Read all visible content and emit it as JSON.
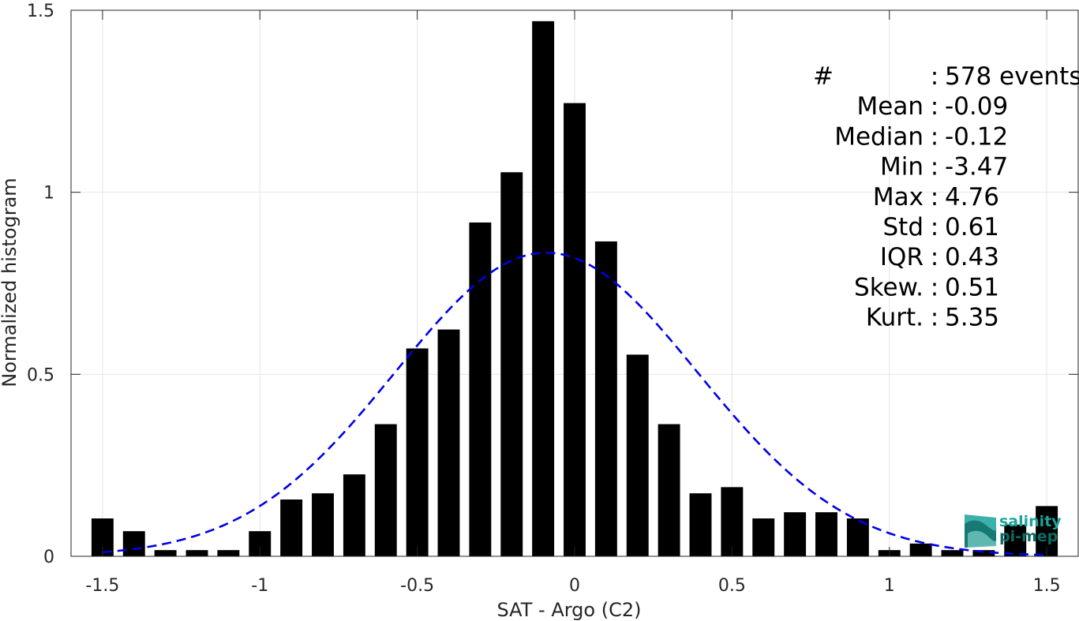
{
  "chart_data": {
    "type": "bar",
    "xlabel": "SAT - Argo (C2)",
    "ylabel": "Normalized histogram",
    "xlim": [
      -1.6,
      1.6
    ],
    "ylim": [
      0,
      1.5
    ],
    "grid": true,
    "x_ticks": [
      -1.5,
      -1,
      -0.5,
      0,
      0.5,
      1,
      1.5
    ],
    "x_tick_labels": [
      "-1.5",
      "-1",
      "-0.5",
      "0",
      "0.5",
      "1",
      "1.5"
    ],
    "y_ticks": [
      0,
      0.5,
      1,
      1.5
    ],
    "y_tick_labels": [
      "0",
      "0.5",
      "1",
      "1.5"
    ],
    "bar_color": "#000000",
    "bin_width": 0.1,
    "bar_width": 0.07,
    "x": [
      -1.5,
      -1.4,
      -1.3,
      -1.2,
      -1.1,
      -1.0,
      -0.9,
      -0.8,
      -0.7,
      -0.6,
      -0.5,
      -0.4,
      -0.3,
      -0.2,
      -0.1,
      0.0,
      0.1,
      0.2,
      0.3,
      0.4,
      0.5,
      0.6,
      0.7,
      0.8,
      0.9,
      1.0,
      1.1,
      1.2,
      1.3,
      1.4,
      1.5
    ],
    "values": [
      0.104,
      0.069,
      0.017,
      0.017,
      0.017,
      0.069,
      0.156,
      0.173,
      0.225,
      0.363,
      0.571,
      0.623,
      0.917,
      1.055,
      1.47,
      1.245,
      0.865,
      0.554,
      0.363,
      0.173,
      0.19,
      0.104,
      0.121,
      0.121,
      0.104,
      0.017,
      0.035,
      0.017,
      0.017,
      0.087,
      0.138
    ],
    "fit": {
      "type": "normal",
      "mean": -0.09,
      "std": 0.48,
      "peak": 0.834,
      "color": "#0000e6",
      "style": "dashed",
      "x_range": [
        -1.5,
        1.5
      ]
    },
    "stats": [
      {
        "key": "#",
        "sep": ":",
        "value": "578 events"
      },
      {
        "key": "Mean",
        "sep": ":",
        "value": "-0.09"
      },
      {
        "key": "Median",
        "sep": ":",
        "value": "-0.12"
      },
      {
        "key": "Min",
        "sep": ":",
        "value": "-3.47"
      },
      {
        "key": "Max",
        "sep": ":",
        "value": "4.76"
      },
      {
        "key": "Std",
        "sep": ":",
        "value": "0.61"
      },
      {
        "key": "IQR",
        "sep": ":",
        "value": "0.43"
      },
      {
        "key": "Skew.",
        "sep": ":",
        "value": "0.51"
      },
      {
        "key": "Kurt.",
        "sep": ":",
        "value": "5.35"
      }
    ]
  },
  "logo": {
    "line1": "salinity",
    "line2": "pi-mep",
    "color_primary": "#1aa39a",
    "color_dark": "#0d6b66"
  }
}
